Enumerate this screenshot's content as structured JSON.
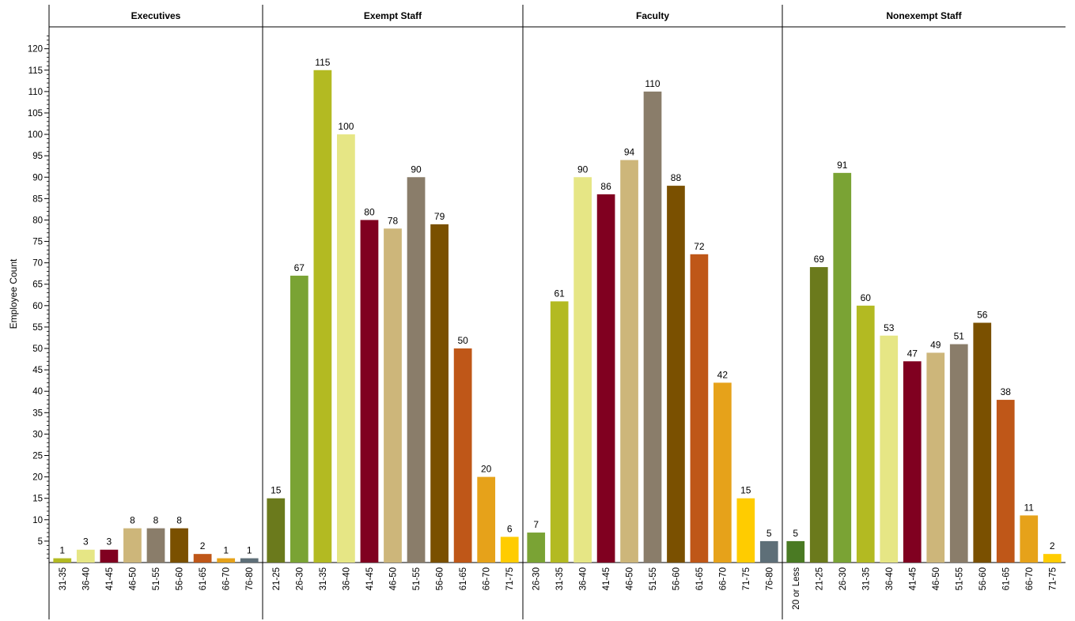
{
  "chart_data": {
    "type": "bar",
    "ylabel": "Employee Count",
    "ylim": [
      0,
      124
    ],
    "yticks": [
      5,
      10,
      15,
      20,
      25,
      30,
      35,
      40,
      45,
      50,
      55,
      60,
      65,
      70,
      75,
      80,
      85,
      90,
      95,
      100,
      105,
      110,
      115,
      120
    ],
    "data_labels": true,
    "gridlines": false,
    "colors": {
      "20 or Less": "#4a7a23",
      "21-25": "#6b7a1c",
      "26-30": "#7aa334",
      "31-35": "#b3ba22",
      "36-40": "#e6e685",
      "41-45": "#800020",
      "46-50": "#cdb67a",
      "51-55": "#8a7d6a",
      "56-60": "#7a5000",
      "61-65": "#bf5718",
      "66-70": "#e6a21a",
      "71-75": "#ffcc00",
      "76-80": "#5e6f78"
    },
    "panels": [
      {
        "title": "Executives",
        "categories": [
          "31-35",
          "36-40",
          "41-45",
          "46-50",
          "51-55",
          "56-60",
          "61-65",
          "66-70",
          "76-80"
        ],
        "values": [
          1,
          3,
          3,
          8,
          8,
          8,
          2,
          1,
          1
        ]
      },
      {
        "title": "Exempt Staff",
        "categories": [
          "21-25",
          "26-30",
          "31-35",
          "36-40",
          "41-45",
          "46-50",
          "51-55",
          "56-60",
          "61-65",
          "66-70",
          "71-75"
        ],
        "values": [
          15,
          67,
          115,
          100,
          80,
          78,
          90,
          79,
          50,
          20,
          6
        ]
      },
      {
        "title": "Faculty",
        "categories": [
          "26-30",
          "31-35",
          "36-40",
          "41-45",
          "46-50",
          "51-55",
          "56-60",
          "61-65",
          "66-70",
          "71-75",
          "76-80"
        ],
        "values": [
          7,
          61,
          90,
          86,
          94,
          110,
          88,
          72,
          42,
          15,
          5
        ]
      },
      {
        "title": "Nonexempt Staff",
        "categories": [
          "20 or Less",
          "21-25",
          "26-30",
          "31-35",
          "36-40",
          "41-45",
          "46-50",
          "51-55",
          "56-60",
          "61-65",
          "66-70",
          "71-75"
        ],
        "values": [
          5,
          69,
          91,
          60,
          53,
          47,
          49,
          51,
          56,
          38,
          11,
          2
        ]
      }
    ]
  }
}
